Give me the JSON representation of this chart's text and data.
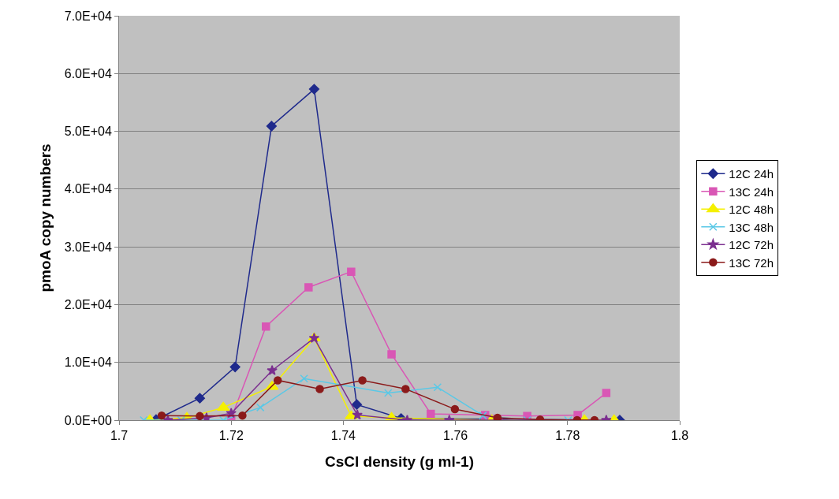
{
  "chart_data": {
    "type": "line",
    "xlabel": "CsCl density (g ml-1)",
    "ylabel": "pmoA copy numbers",
    "xlim": [
      1.7,
      1.8
    ],
    "xticks": [
      1.7,
      1.72,
      1.74,
      1.76,
      1.78,
      1.8
    ],
    "ylim": [
      0,
      70000
    ],
    "yticks": [
      {
        "value": 0,
        "label": "0.0E+00"
      },
      {
        "value": 10000,
        "label": "1.0E+04"
      },
      {
        "value": 20000,
        "label": "2.0E+04"
      },
      {
        "value": 30000,
        "label": "3.0E+04"
      },
      {
        "value": 40000,
        "label": "4.0E+04"
      },
      {
        "value": 50000,
        "label": "5.0E+04"
      },
      {
        "value": 60000,
        "label": "6.0E+04"
      },
      {
        "value": 70000,
        "label": "7.0E+04"
      }
    ],
    "grid": "y",
    "legend": "right",
    "line_style": "solid",
    "series": [
      {
        "name": "12C 24h",
        "color": "#1f2a8c",
        "marker": "diamond",
        "x": [
          1.7066,
          1.7144,
          1.7207,
          1.7272,
          1.7348,
          1.7424,
          1.7503,
          1.7893
        ],
        "values": [
          100,
          3800,
          9200,
          50900,
          57300,
          2700,
          300,
          0
        ]
      },
      {
        "name": "13C 24h",
        "color": "#d957b5",
        "marker": "square",
        "x": [
          1.72,
          1.7262,
          1.7338,
          1.7414,
          1.7486,
          1.7556,
          1.7653,
          1.7728,
          1.7818,
          1.7869
        ],
        "values": [
          300,
          16200,
          23000,
          25700,
          11400,
          1100,
          900,
          700,
          900,
          4700
        ]
      },
      {
        "name": "12C 48h",
        "color": "#f5f000",
        "marker": "triangle",
        "x": [
          1.7055,
          1.7121,
          1.7186,
          1.7273,
          1.7348,
          1.7414,
          1.7486,
          1.7665,
          1.783,
          1.7883
        ],
        "values": [
          0,
          400,
          2200,
          5800,
          14200,
          700,
          400,
          0,
          0,
          0
        ]
      },
      {
        "name": "13C 48h",
        "color": "#5ac8e6",
        "marker": "cross",
        "x": [
          1.7044,
          1.7111,
          1.7186,
          1.7252,
          1.733,
          1.748,
          1.7568,
          1.7649,
          1.7728,
          1.7801
        ],
        "values": [
          0,
          0,
          0,
          2200,
          7200,
          4700,
          5700,
          800,
          0,
          0
        ]
      },
      {
        "name": "12C 72h",
        "color": "#7b2f8f",
        "marker": "star",
        "x": [
          1.7087,
          1.7156,
          1.72,
          1.7273,
          1.7348,
          1.7425,
          1.7514,
          1.7589,
          1.7676,
          1.7869
        ],
        "values": [
          0,
          400,
          1200,
          8600,
          14200,
          900,
          0,
          0,
          0,
          0
        ]
      },
      {
        "name": "13C 72h",
        "color": "#8b1a1a",
        "marker": "circle",
        "x": [
          1.7076,
          1.7144,
          1.722,
          1.7283,
          1.7358,
          1.7434,
          1.7511,
          1.7599,
          1.7675,
          1.7751,
          1.7817,
          1.7848
        ],
        "values": [
          800,
          700,
          800,
          6900,
          5400,
          6900,
          5400,
          1900,
          400,
          100,
          0,
          0
        ]
      }
    ]
  }
}
